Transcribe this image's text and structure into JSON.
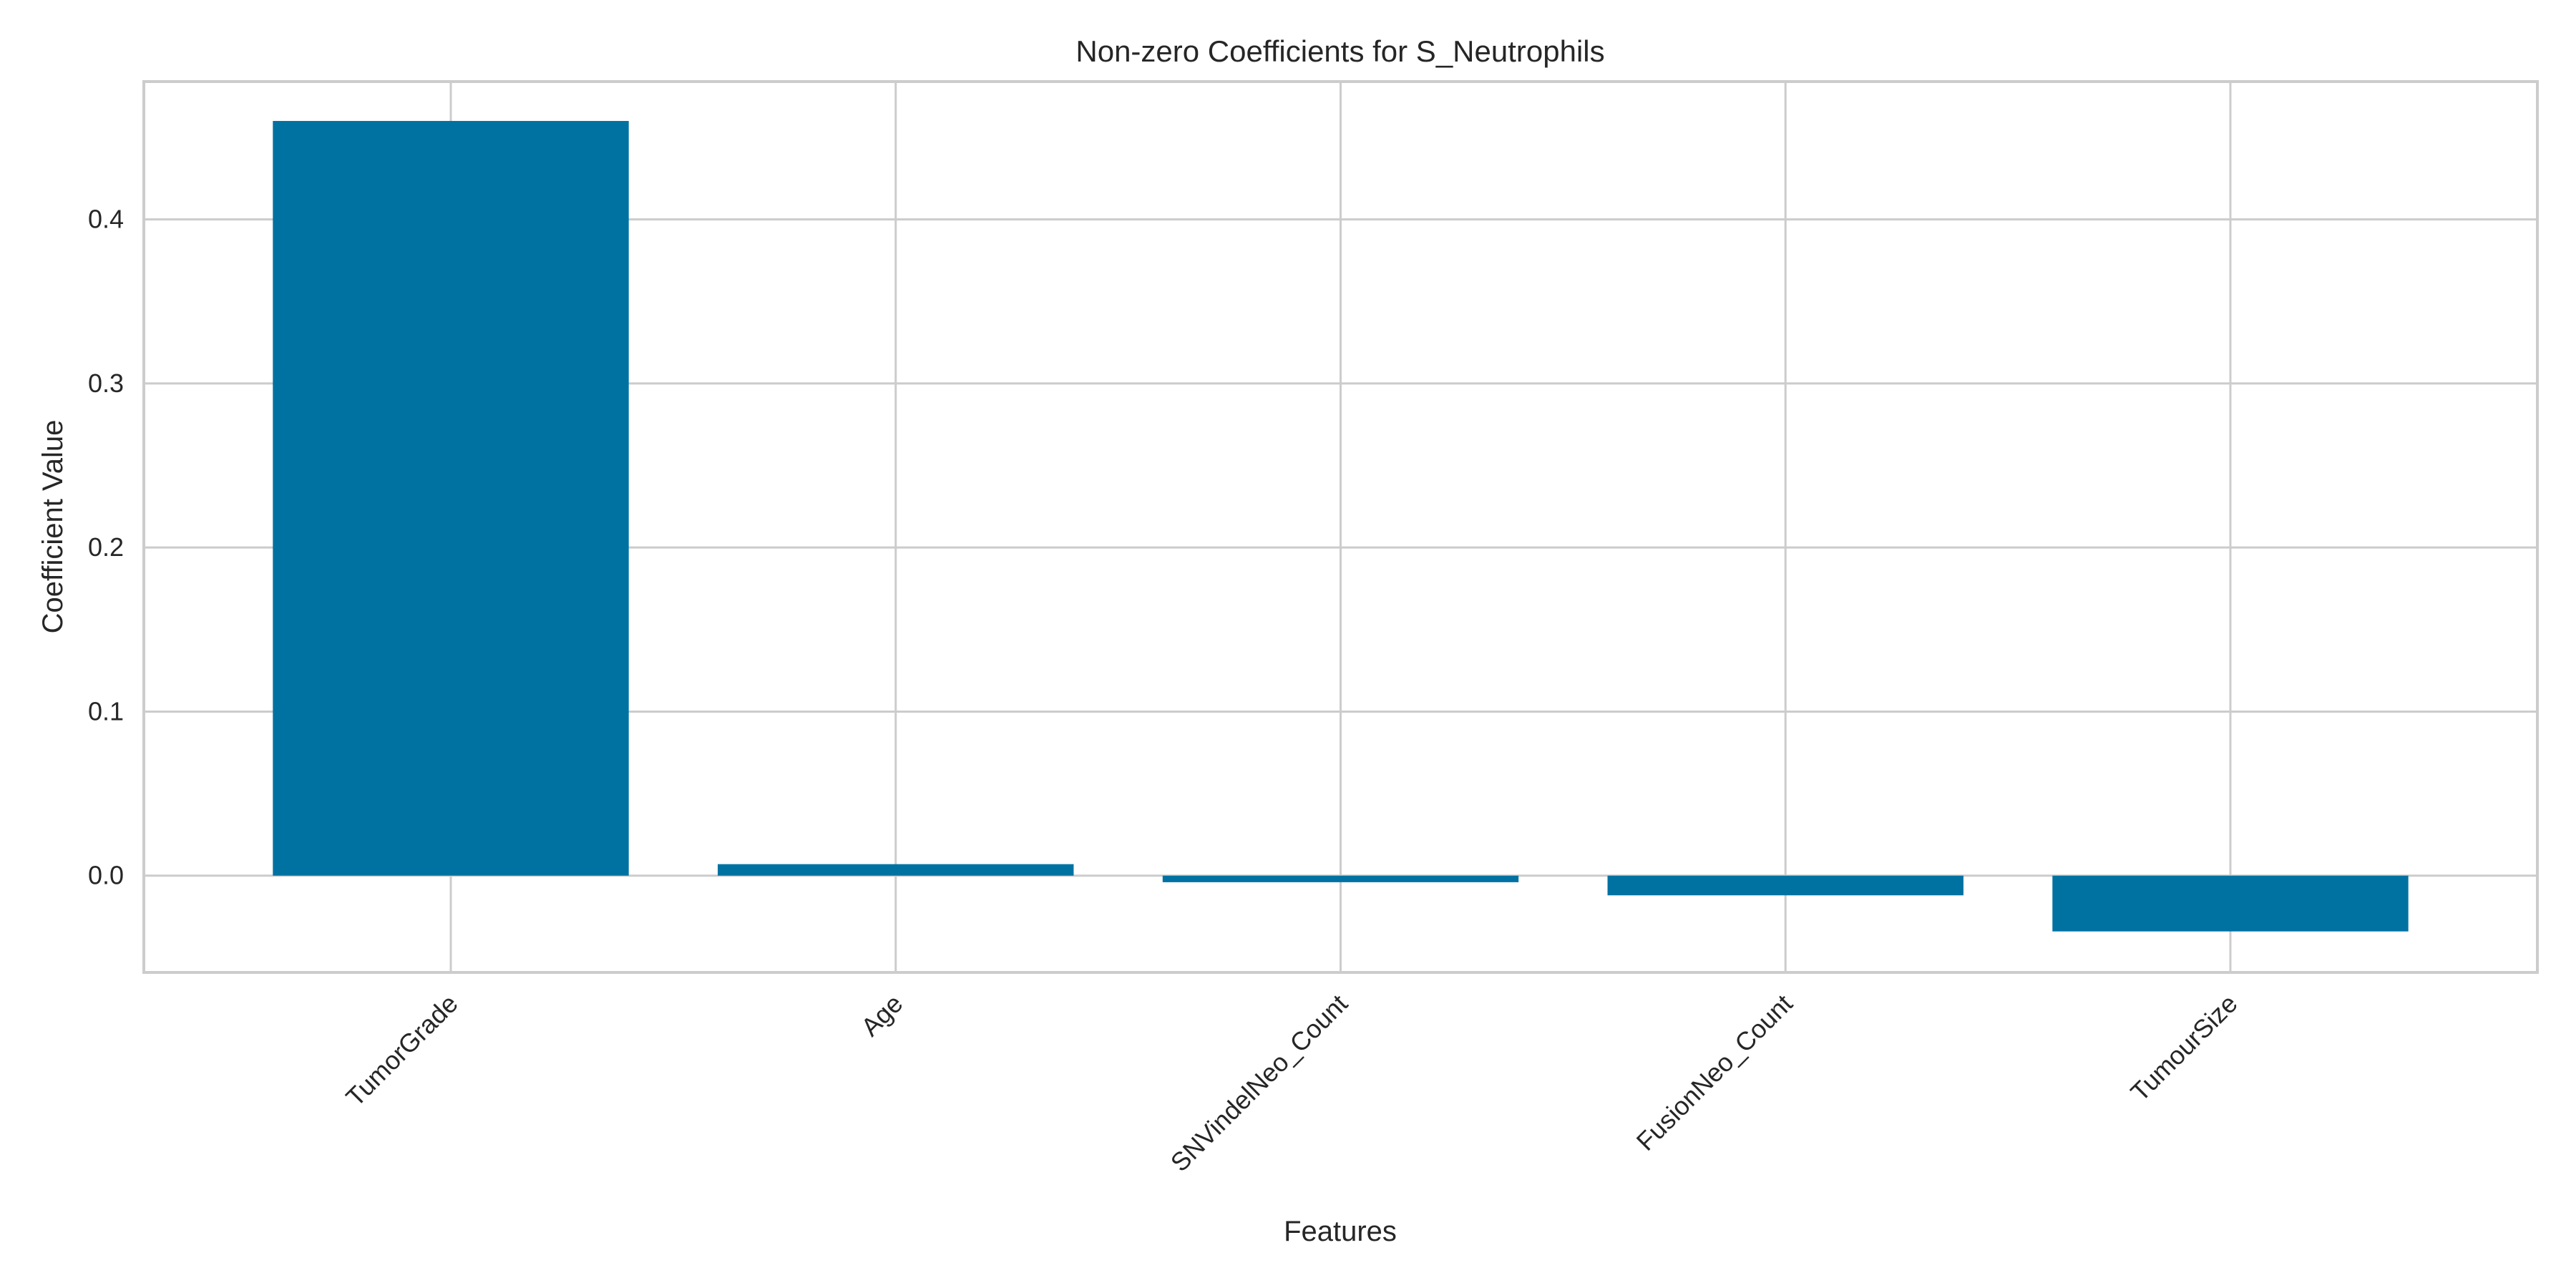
{
  "chart_data": {
    "type": "bar",
    "title": "Non-zero Coefficients for S_Neutrophils",
    "xlabel": "Features",
    "ylabel": "Coefficient Value",
    "categories": [
      "TumorGrade",
      "Age",
      "SNVindelNeo_Count",
      "FusionNeo_Count",
      "TumourSize"
    ],
    "values": [
      0.46,
      0.007,
      -0.004,
      -0.012,
      -0.034
    ],
    "ylim": [
      -0.059,
      0.484
    ],
    "yticks": [
      0.0,
      0.1,
      0.2,
      0.3,
      0.4
    ],
    "ytick_labels": [
      "0.0",
      "0.1",
      "0.2",
      "0.3",
      "0.4"
    ],
    "grid": true,
    "bar_color": "#0072a2"
  }
}
